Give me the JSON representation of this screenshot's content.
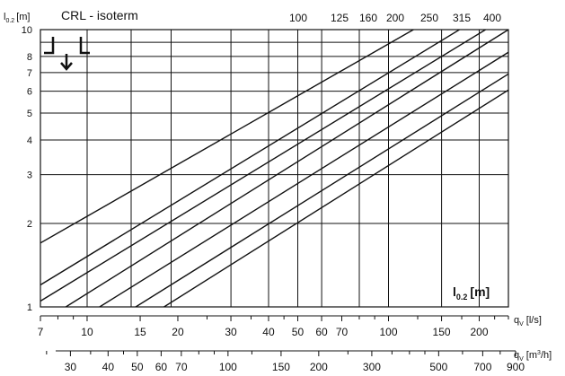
{
  "chart_data": {
    "type": "line",
    "title": "CRL - isoterm",
    "ylabel": {
      "main": "l",
      "sub": "0.2",
      "unit": "[m]"
    },
    "inplot_label": {
      "main": "l",
      "sub": "0.2",
      "unit": "[m]"
    },
    "y_axis": {
      "scale": "log",
      "range": [
        1,
        10
      ],
      "tick_labels": [
        1,
        2,
        3,
        4,
        5,
        6,
        7,
        8,
        10
      ],
      "gridlines": [
        1,
        2,
        3,
        4,
        5,
        6,
        7,
        8,
        9,
        10
      ]
    },
    "x_axis_ls": {
      "label": "q",
      "sub": "V",
      "unit": "[l/s]",
      "scale": "log",
      "range": [
        7,
        250
      ],
      "tick_labels": [
        7,
        10,
        15,
        20,
        30,
        40,
        50,
        60,
        70,
        100,
        150,
        200
      ],
      "minor_ticks": [
        8,
        9,
        25,
        35,
        45,
        80,
        90,
        125,
        175,
        225,
        250
      ]
    },
    "x_axis_m3h": {
      "label": "q",
      "sub": "V",
      "unit": "[m",
      "unit_sup": "3",
      "unit_end": "/h]",
      "scale": "log",
      "tick_labels": [
        30,
        40,
        50,
        60,
        70,
        100,
        150,
        200,
        300,
        500,
        700,
        900
      ],
      "minor_ticks": [
        25,
        35,
        45,
        80,
        90,
        120,
        250,
        350,
        400,
        450,
        600,
        800
      ]
    },
    "x_gridlines": [
      10,
      14,
      19,
      30,
      40,
      50,
      60,
      80,
      100,
      150,
      200
    ],
    "series": [
      {
        "name": "100",
        "points": [
          [
            7,
            1.7
          ],
          [
            121,
            10
          ]
        ]
      },
      {
        "name": "125",
        "points": [
          [
            7,
            1.2
          ],
          [
            172,
            10
          ]
        ]
      },
      {
        "name": "160",
        "points": [
          [
            7,
            1.05
          ],
          [
            210,
            10
          ]
        ]
      },
      {
        "name": "200",
        "points": [
          [
            8.5,
            1
          ],
          [
            250,
            10
          ]
        ]
      },
      {
        "name": "250",
        "points": [
          [
            11,
            1
          ],
          [
            330,
            10
          ]
        ]
      },
      {
        "name": "315",
        "points": [
          [
            14.5,
            1
          ],
          [
            430,
            10
          ]
        ]
      },
      {
        "name": "400",
        "points": [
          [
            18,
            1
          ],
          [
            520,
            10
          ]
        ]
      }
    ],
    "grid": true,
    "legend": "none"
  }
}
